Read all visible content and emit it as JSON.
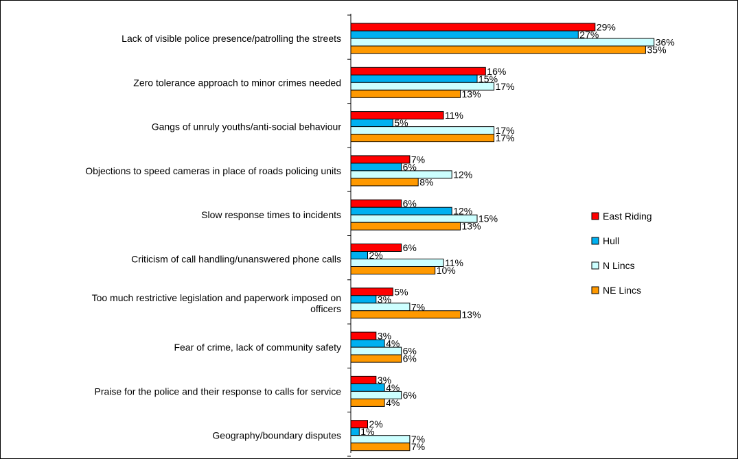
{
  "chart_data": {
    "type": "bar",
    "orientation": "horizontal",
    "categories": [
      [
        "Lack of visible police presence/patrolling the streets"
      ],
      [
        "Zero tolerance approach to minor crimes needed"
      ],
      [
        "Gangs of unruly youths/anti-social behaviour"
      ],
      [
        "Objections to speed cameras in place of roads policing units"
      ],
      [
        "Slow response times to incidents"
      ],
      [
        "Criticism of call handling/unanswered phone calls"
      ],
      [
        "Too much restrictive legislation and paperwork imposed on",
        "officers"
      ],
      [
        "Fear of crime, lack of community safety"
      ],
      [
        "Praise for the police and their response to calls for service"
      ],
      [
        "Geography/boundary disputes"
      ]
    ],
    "series": [
      {
        "name": "East Riding",
        "color": "#ff0000",
        "values": [
          29,
          16,
          11,
          7,
          6,
          6,
          5,
          3,
          3,
          2
        ]
      },
      {
        "name": "Hull",
        "color": "#00b0f0",
        "values": [
          27,
          15,
          5,
          6,
          12,
          2,
          3,
          4,
          4,
          1
        ]
      },
      {
        "name": "N Lincs",
        "color": "#ccffff",
        "values": [
          36,
          17,
          17,
          12,
          15,
          11,
          7,
          6,
          6,
          7
        ]
      },
      {
        "name": "NE Lincs",
        "color": "#ff9900",
        "values": [
          35,
          13,
          17,
          8,
          13,
          10,
          13,
          6,
          4,
          7
        ]
      }
    ],
    "value_suffix": "%",
    "xlim": [
      0,
      36
    ],
    "legend_position": "right",
    "gridlines": false
  }
}
